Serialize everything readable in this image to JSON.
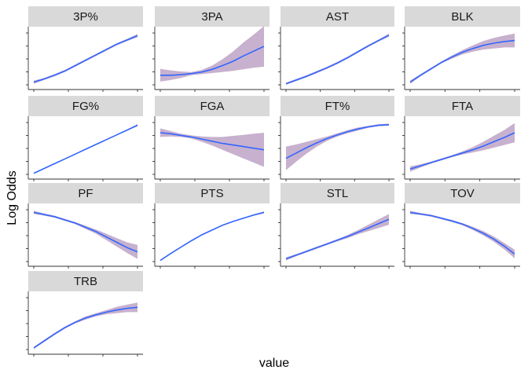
{
  "chart_data": {
    "type": "line",
    "xlabel": "value",
    "ylabel": "Log Odds",
    "colors": {
      "line": "#3366FF",
      "ribbon": "#B497BD",
      "strip": "#D9D9D9",
      "axis": "#333333"
    },
    "panels": [
      {
        "title": "3P%",
        "x": [
          0,
          0.1,
          0.2,
          0.3,
          0.4,
          0.5,
          0.6,
          0.7,
          0.8,
          0.9,
          1
        ],
        "y": [
          0.05,
          0.11,
          0.18,
          0.26,
          0.36,
          0.46,
          0.56,
          0.66,
          0.76,
          0.84,
          0.92
        ],
        "ribbon": [
          0.03,
          0.02,
          0.02,
          0.02,
          0.02,
          0.02,
          0.02,
          0.02,
          0.02,
          0.02,
          0.03
        ]
      },
      {
        "title": "3PA",
        "x": [
          0,
          0.1,
          0.2,
          0.3,
          0.4,
          0.5,
          0.6,
          0.7,
          0.8,
          0.9,
          1
        ],
        "y": [
          0.18,
          0.18,
          0.19,
          0.21,
          0.24,
          0.29,
          0.36,
          0.44,
          0.54,
          0.63,
          0.72
        ],
        "ribbon": [
          0.12,
          0.09,
          0.06,
          0.03,
          0.04,
          0.07,
          0.12,
          0.18,
          0.25,
          0.31,
          0.38
        ]
      },
      {
        "title": "AST",
        "x": [
          0,
          0.1,
          0.2,
          0.3,
          0.4,
          0.5,
          0.6,
          0.7,
          0.8,
          0.9,
          1
        ],
        "y": [
          0.02,
          0.09,
          0.16,
          0.24,
          0.32,
          0.41,
          0.51,
          0.62,
          0.73,
          0.83,
          0.93
        ],
        "ribbon": [
          0.02,
          0.02,
          0.02,
          0.02,
          0.02,
          0.02,
          0.02,
          0.02,
          0.02,
          0.02,
          0.03
        ]
      },
      {
        "title": "BLK",
        "x": [
          0,
          0.1,
          0.2,
          0.3,
          0.4,
          0.5,
          0.6,
          0.7,
          0.8,
          0.9,
          1
        ],
        "y": [
          0.05,
          0.18,
          0.3,
          0.42,
          0.52,
          0.61,
          0.68,
          0.74,
          0.78,
          0.81,
          0.83
        ],
        "ribbon": [
          0.03,
          0.02,
          0.02,
          0.02,
          0.03,
          0.04,
          0.06,
          0.08,
          0.1,
          0.11,
          0.13
        ]
      },
      {
        "title": "FG%",
        "x": [
          0,
          0.1,
          0.2,
          0.3,
          0.4,
          0.5,
          0.6,
          0.7,
          0.8,
          0.9,
          1
        ],
        "y": [
          0.02,
          0.11,
          0.2,
          0.29,
          0.38,
          0.47,
          0.56,
          0.65,
          0.74,
          0.83,
          0.92
        ],
        "ribbon": [
          0.01,
          0.01,
          0.01,
          0.01,
          0.01,
          0.01,
          0.01,
          0.01,
          0.01,
          0.01,
          0.02
        ]
      },
      {
        "title": "FGA",
        "x": [
          0,
          0.1,
          0.2,
          0.3,
          0.4,
          0.5,
          0.6,
          0.7,
          0.8,
          0.9,
          1
        ],
        "y": [
          0.78,
          0.76,
          0.73,
          0.7,
          0.66,
          0.62,
          0.58,
          0.55,
          0.52,
          0.49,
          0.46
        ],
        "ribbon": [
          0.08,
          0.05,
          0.03,
          0.03,
          0.05,
          0.08,
          0.12,
          0.17,
          0.22,
          0.27,
          0.32
        ]
      },
      {
        "title": "FT%",
        "x": [
          0,
          0.1,
          0.2,
          0.3,
          0.4,
          0.5,
          0.6,
          0.7,
          0.8,
          0.9,
          1
        ],
        "y": [
          0.3,
          0.4,
          0.5,
          0.59,
          0.67,
          0.74,
          0.8,
          0.85,
          0.89,
          0.92,
          0.93
        ],
        "ribbon": [
          0.22,
          0.16,
          0.11,
          0.07,
          0.04,
          0.03,
          0.03,
          0.03,
          0.02,
          0.02,
          0.02
        ]
      },
      {
        "title": "FTA",
        "x": [
          0,
          0.1,
          0.2,
          0.3,
          0.4,
          0.5,
          0.6,
          0.7,
          0.8,
          0.9,
          1
        ],
        "y": [
          0.1,
          0.16,
          0.22,
          0.28,
          0.34,
          0.4,
          0.46,
          0.53,
          0.61,
          0.69,
          0.78
        ],
        "ribbon": [
          0.05,
          0.03,
          0.02,
          0.02,
          0.02,
          0.03,
          0.05,
          0.08,
          0.11,
          0.14,
          0.18
        ]
      },
      {
        "title": "PF",
        "x": [
          0,
          0.1,
          0.2,
          0.3,
          0.4,
          0.5,
          0.6,
          0.7,
          0.8,
          0.9,
          1
        ],
        "y": [
          0.92,
          0.88,
          0.84,
          0.78,
          0.72,
          0.64,
          0.56,
          0.46,
          0.36,
          0.26,
          0.18
        ],
        "ribbon": [
          0.03,
          0.02,
          0.02,
          0.02,
          0.02,
          0.03,
          0.04,
          0.06,
          0.08,
          0.1,
          0.13
        ]
      },
      {
        "title": "PTS",
        "x": [
          0,
          0.1,
          0.2,
          0.3,
          0.4,
          0.5,
          0.6,
          0.7,
          0.8,
          0.9,
          1
        ],
        "y": [
          0.02,
          0.15,
          0.27,
          0.39,
          0.5,
          0.59,
          0.68,
          0.75,
          0.81,
          0.87,
          0.92
        ],
        "ribbon": [
          0.01,
          0.01,
          0.01,
          0.01,
          0.01,
          0.01,
          0.01,
          0.01,
          0.01,
          0.01,
          0.02
        ]
      },
      {
        "title": "STL",
        "x": [
          0,
          0.1,
          0.2,
          0.3,
          0.4,
          0.5,
          0.6,
          0.7,
          0.8,
          0.9,
          1
        ],
        "y": [
          0.05,
          0.12,
          0.19,
          0.26,
          0.33,
          0.4,
          0.47,
          0.55,
          0.63,
          0.71,
          0.79
        ],
        "ribbon": [
          0.03,
          0.02,
          0.02,
          0.02,
          0.02,
          0.02,
          0.03,
          0.04,
          0.06,
          0.08,
          0.1
        ]
      },
      {
        "title": "TOV",
        "x": [
          0,
          0.1,
          0.2,
          0.3,
          0.4,
          0.5,
          0.6,
          0.7,
          0.8,
          0.9,
          1
        ],
        "y": [
          0.92,
          0.89,
          0.86,
          0.81,
          0.76,
          0.7,
          0.62,
          0.53,
          0.42,
          0.29,
          0.14
        ],
        "ribbon": [
          0.03,
          0.02,
          0.02,
          0.02,
          0.02,
          0.02,
          0.03,
          0.04,
          0.05,
          0.06,
          0.08
        ]
      },
      {
        "title": "TRB",
        "x": [
          0,
          0.1,
          0.2,
          0.3,
          0.4,
          0.5,
          0.6,
          0.7,
          0.8,
          0.9,
          1
        ],
        "y": [
          0.03,
          0.16,
          0.29,
          0.41,
          0.51,
          0.59,
          0.65,
          0.7,
          0.74,
          0.77,
          0.79
        ],
        "ribbon": [
          0.02,
          0.02,
          0.02,
          0.02,
          0.02,
          0.03,
          0.03,
          0.04,
          0.06,
          0.07,
          0.09
        ]
      }
    ]
  }
}
